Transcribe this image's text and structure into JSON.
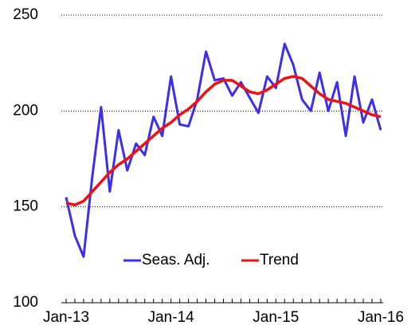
{
  "chart_data": {
    "type": "line",
    "categories": [
      "Jan-13",
      null,
      null,
      null,
      null,
      null,
      null,
      null,
      null,
      null,
      null,
      null,
      "Jan-14",
      null,
      null,
      null,
      null,
      null,
      null,
      null,
      null,
      null,
      null,
      null,
      "Jan-15",
      null,
      null,
      null,
      null,
      null,
      null,
      null,
      null,
      null,
      null,
      null,
      "Jan-16"
    ],
    "series": [
      {
        "name": "Seas. Adj.",
        "color": "#3c2eef",
        "values": [
          155,
          135,
          124,
          166,
          202,
          158,
          190,
          169,
          183,
          177,
          197,
          187,
          218,
          193,
          192,
          206,
          231,
          216,
          217,
          208,
          215,
          207,
          199,
          218,
          212,
          235,
          224,
          206,
          200,
          220,
          200,
          215,
          187,
          218,
          194,
          206,
          190
        ]
      },
      {
        "name": "Trend",
        "color": "#ee1111",
        "values": [
          152,
          151,
          153,
          158,
          163,
          168,
          172,
          175,
          179,
          183,
          187,
          191,
          194,
          198,
          201,
          205,
          210,
          214,
          216,
          216,
          213,
          210,
          209,
          211,
          214,
          217,
          218,
          217,
          213,
          209,
          206,
          205,
          204,
          202,
          200,
          198,
          197
        ]
      }
    ],
    "ylim": [
      100,
      250
    ],
    "yticks": [
      100,
      150,
      200,
      250
    ],
    "grid": true
  }
}
